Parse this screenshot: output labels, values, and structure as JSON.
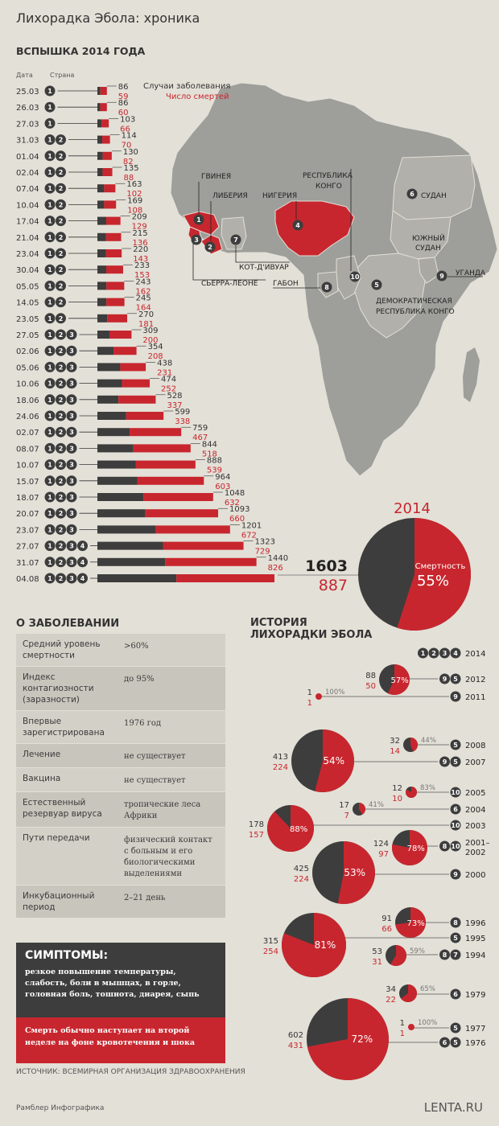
{
  "title": "Лихорадка Эбола: хроника",
  "outbreak": {
    "heading": "ВСПЫШКА 2014 ГОДА",
    "col_date": "Дата",
    "col_country": "Страна",
    "legend_cases": "Случаи заболевания",
    "legend_deaths": "Число смертей",
    "total_cases": "1603",
    "total_deaths": "887"
  },
  "colors": {
    "cases": "#3d3d3d",
    "deaths": "#c8262e",
    "background": "#e3e0d7",
    "land": "#9e9e9a",
    "highlight_land": "#c8262e"
  },
  "chart_data": {
    "type": "bar",
    "title": "ВСПЫШКА 2014 ГОДА",
    "rows": [
      {
        "date": "25.03",
        "countries": [
          1
        ],
        "cases": 86,
        "deaths": 59
      },
      {
        "date": "26.03",
        "countries": [
          1
        ],
        "cases": 86,
        "deaths": 60
      },
      {
        "date": "27.03",
        "countries": [
          1
        ],
        "cases": 103,
        "deaths": 66
      },
      {
        "date": "31.03",
        "countries": [
          1,
          2
        ],
        "cases": 114,
        "deaths": 70
      },
      {
        "date": "01.04",
        "countries": [
          1,
          2
        ],
        "cases": 130,
        "deaths": 82
      },
      {
        "date": "02.04",
        "countries": [
          1,
          2
        ],
        "cases": 135,
        "deaths": 88
      },
      {
        "date": "07.04",
        "countries": [
          1,
          2
        ],
        "cases": 163,
        "deaths": 102
      },
      {
        "date": "10.04",
        "countries": [
          1,
          2
        ],
        "cases": 169,
        "deaths": 108
      },
      {
        "date": "17.04",
        "countries": [
          1,
          2
        ],
        "cases": 209,
        "deaths": 129
      },
      {
        "date": "21.04",
        "countries": [
          1,
          2
        ],
        "cases": 215,
        "deaths": 136
      },
      {
        "date": "23.04",
        "countries": [
          1,
          2
        ],
        "cases": 220,
        "deaths": 143
      },
      {
        "date": "30.04",
        "countries": [
          1,
          2
        ],
        "cases": 233,
        "deaths": 153
      },
      {
        "date": "05.05",
        "countries": [
          1,
          2
        ],
        "cases": 243,
        "deaths": 162
      },
      {
        "date": "14.05",
        "countries": [
          1,
          2
        ],
        "cases": 245,
        "deaths": 164
      },
      {
        "date": "23.05",
        "countries": [
          1,
          2
        ],
        "cases": 270,
        "deaths": 181
      },
      {
        "date": "27.05",
        "countries": [
          1,
          2,
          3
        ],
        "cases": 309,
        "deaths": 200
      },
      {
        "date": "02.06",
        "countries": [
          1,
          2,
          3
        ],
        "cases": 354,
        "deaths": 208
      },
      {
        "date": "05.06",
        "countries": [
          1,
          2,
          3
        ],
        "cases": 438,
        "deaths": 231
      },
      {
        "date": "10.06",
        "countries": [
          1,
          2,
          3
        ],
        "cases": 474,
        "deaths": 252
      },
      {
        "date": "18.06",
        "countries": [
          1,
          2,
          3
        ],
        "cases": 528,
        "deaths": 337
      },
      {
        "date": "24.06",
        "countries": [
          1,
          2,
          3
        ],
        "cases": 599,
        "deaths": 338
      },
      {
        "date": "02.07",
        "countries": [
          1,
          2,
          3
        ],
        "cases": 759,
        "deaths": 467
      },
      {
        "date": "08.07",
        "countries": [
          1,
          2,
          3
        ],
        "cases": 844,
        "deaths": 518
      },
      {
        "date": "10.07",
        "countries": [
          1,
          2,
          3
        ],
        "cases": 888,
        "deaths": 539
      },
      {
        "date": "15.07",
        "countries": [
          1,
          2,
          3
        ],
        "cases": 964,
        "deaths": 603
      },
      {
        "date": "18.07",
        "countries": [
          1,
          2,
          3
        ],
        "cases": 1048,
        "deaths": 632
      },
      {
        "date": "20.07",
        "countries": [
          1,
          2,
          3
        ],
        "cases": 1093,
        "deaths": 660
      },
      {
        "date": "23.07",
        "countries": [
          1,
          2,
          3
        ],
        "cases": 1201,
        "deaths": 672
      },
      {
        "date": "27.07",
        "countries": [
          1,
          2,
          3,
          4
        ],
        "cases": 1323,
        "deaths": 729
      },
      {
        "date": "31.07",
        "countries": [
          1,
          2,
          3,
          4
        ],
        "cases": 1440,
        "deaths": 826
      },
      {
        "date": "04.08",
        "countries": [
          1,
          2,
          3,
          4
        ],
        "cases": 1603,
        "deaths": 887
      }
    ],
    "pie_2014": {
      "year_label": "2014",
      "label": "Смертность",
      "percent": "55%",
      "deaths_share": 0.55
    },
    "history": [
      {
        "year": "2014",
        "countries": [
          1,
          2,
          3,
          4
        ]
      },
      {
        "year": "2012",
        "countries": [
          9,
          5
        ],
        "cases": "88",
        "deaths": "50",
        "percent": "57%"
      },
      {
        "year": "2011",
        "countries": [
          9
        ],
        "cases": "1",
        "deaths": "1",
        "percent": "100%"
      },
      {
        "year": "2008",
        "countries": [
          5
        ],
        "cases": "32",
        "deaths": "14",
        "percent": "44%"
      },
      {
        "year": "2007",
        "countries": [
          9,
          5
        ],
        "cases": "413",
        "deaths": "224",
        "percent": "54%"
      },
      {
        "year": "2005",
        "countries": [
          10
        ],
        "cases": "12",
        "deaths": "10",
        "percent": "83%"
      },
      {
        "year": "2004",
        "countries": [
          6
        ],
        "cases": "17",
        "deaths": "7",
        "percent": "41%"
      },
      {
        "year": "2003",
        "countries": [
          10
        ],
        "cases": "178",
        "deaths": "157",
        "percent": "88%"
      },
      {
        "year": "2001–2002",
        "countries": [
          8,
          10
        ],
        "cases": "124",
        "deaths": "97",
        "percent": "78%"
      },
      {
        "year": "2000",
        "countries": [
          9
        ],
        "cases": "425",
        "deaths": "224",
        "percent": "53%"
      },
      {
        "year": "1996",
        "countries": [
          8
        ],
        "cases": "91",
        "deaths": "66",
        "percent": "73%"
      },
      {
        "year": "1995",
        "countries": [
          5
        ],
        "cases": "315",
        "deaths": "254",
        "percent": "81%"
      },
      {
        "year": "1994",
        "countries": [
          8,
          7
        ],
        "cases": "53",
        "deaths": "31",
        "percent": "59%"
      },
      {
        "year": "1979",
        "countries": [
          6
        ],
        "cases": "34",
        "deaths": "22",
        "percent": "65%"
      },
      {
        "year": "1977",
        "countries": [
          5
        ],
        "cases": "1",
        "deaths": "1",
        "percent": "100%"
      },
      {
        "year": "1976",
        "countries": [
          6,
          5
        ],
        "cases": "602",
        "deaths": "431",
        "percent": "72%"
      }
    ]
  },
  "map": {
    "labels": {
      "guinea": "ГВИНЕЯ",
      "liberia": "ЛИБЕРИЯ",
      "nigeria": "НИГЕРИЯ",
      "congo_rep_1": "РЕСПУБЛИКА",
      "congo_rep_2": "КОНГО",
      "sudan": "СУДАН",
      "south_sudan_1": "ЮЖНЫЙ",
      "south_sudan_2": "СУДАН",
      "cote": "КОТ-Д'ИВУАР",
      "uganda": "УГАНДА",
      "sierra": "СЬЕРРА-ЛЕОНЕ",
      "gabon": "ГАБОН",
      "drc_1": "ДЕМОКРАТИЧЕСКАЯ",
      "drc_2": "РЕСПУБЛИКА КОНГО"
    }
  },
  "history": {
    "heading_1": "ИСТОРИЯ",
    "heading_2": "ЛИХОРАДКИ ЭБОЛА"
  },
  "about": {
    "heading": "О ЗАБОЛЕВАНИИ",
    "rows": [
      {
        "key": "Средний уровень смертности",
        "value": ">60%"
      },
      {
        "key": "Индекс контагиозности (заразности)",
        "value": "до 95%"
      },
      {
        "key": "Впервые зарегистрирована",
        "value": "1976 год"
      },
      {
        "key": "Лечение",
        "value": "не существует"
      },
      {
        "key": "Вакцина",
        "value": "не существует"
      },
      {
        "key": "Естественный резервуар вируса",
        "value": "тропические леса Африки"
      },
      {
        "key": "Пути передачи",
        "value": "физический контакт с больным и его биологическими выделениями"
      },
      {
        "key": "Инкубационный период",
        "value": "2–21 день"
      }
    ],
    "symptoms_heading": "СИМПТОМЫ:",
    "symptoms_text": "резкое повышение температуры, слабость, боли в мышцах, в горле, головная боль, тошнота, диарея, сыпь",
    "death_text": "Смерть обычно наступает на второй неделе на фоне кровотечения и шока"
  },
  "source": "ИСТОЧНИК: ВСЕМИРНАЯ ОРГАНИЗАЦИЯ ЗДРАВООХРАНЕНИЯ",
  "footer_left": "Рамблер Инфографика",
  "footer_right": "LENTA.RU"
}
